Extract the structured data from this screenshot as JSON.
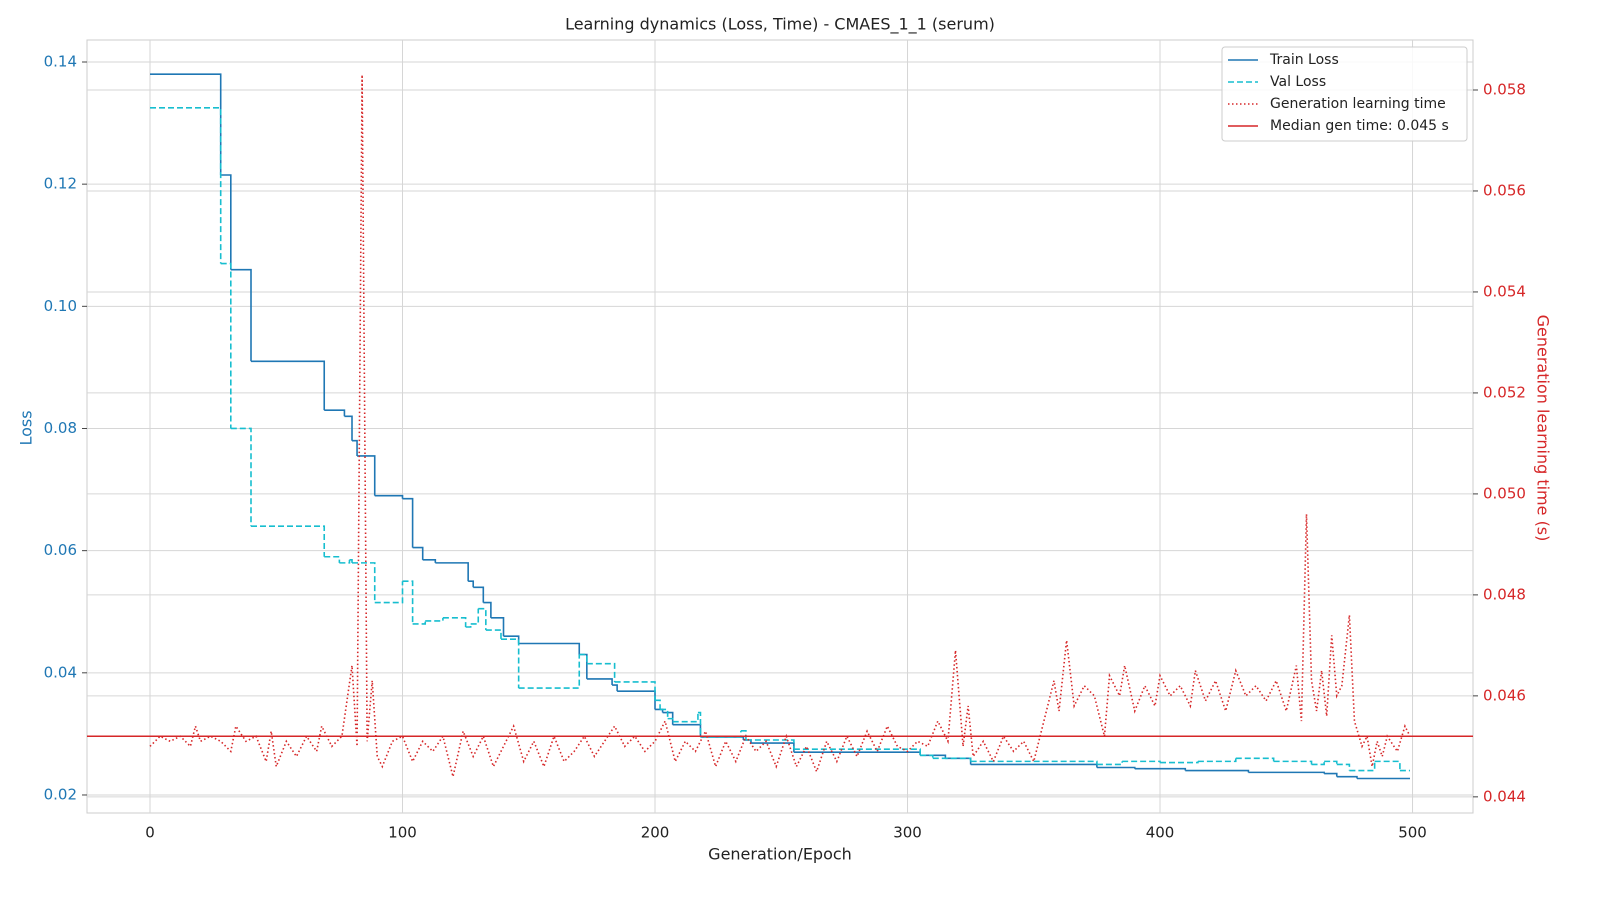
{
  "chart_data": {
    "type": "line",
    "title": "Learning dynamics (Loss, Time) - CMAES_1_1 (serum)",
    "xlabel": "Generation/Epoch",
    "ylabel": "Loss",
    "y2label": "Generation learning time (s)",
    "xlim": [
      -24.95,
      523.95
    ],
    "xticks": [
      0,
      100,
      200,
      300,
      400,
      500
    ],
    "ylim": [
      0.01705,
      0.1436
    ],
    "yticks": [
      0.02,
      0.04,
      0.06,
      0.08,
      {
        "value": 0.1,
        "label": "0.10"
      },
      0.12,
      0.14
    ],
    "y2lim": [
      0.04368,
      0.05899
    ],
    "y2ticks": [
      0.044,
      0.046,
      0.048,
      {
        "value": 0.05,
        "label": "0.050"
      },
      0.052,
      0.054,
      0.056,
      0.058
    ],
    "grid": true,
    "legend": "upper right",
    "ycolor": "#1f77b4",
    "y2color": "#d62728",
    "series": [
      {
        "name": "Train Loss",
        "color": "#1f77b4",
        "dash": "solid",
        "step": "post",
        "x": [
          0,
          28,
          32,
          40,
          69,
          77,
          80,
          82,
          89,
          100,
          104,
          108,
          113,
          126,
          128,
          132,
          135,
          140,
          146,
          170,
          173,
          183,
          185,
          200,
          203,
          207,
          218,
          235,
          238,
          255,
          305,
          315,
          325,
          375,
          390,
          410,
          435,
          465,
          470,
          478,
          499
        ],
        "values": [
          0.138,
          0.1215,
          0.106,
          0.091,
          0.083,
          0.082,
          0.078,
          0.0755,
          0.069,
          0.0685,
          0.0605,
          0.0585,
          0.058,
          0.055,
          0.054,
          0.0515,
          0.049,
          0.046,
          0.0448,
          0.043,
          0.039,
          0.038,
          0.037,
          0.034,
          0.0335,
          0.0315,
          0.0295,
          0.029,
          0.0285,
          0.027,
          0.0265,
          0.026,
          0.025,
          0.0245,
          0.0243,
          0.024,
          0.0237,
          0.0235,
          0.023,
          0.0227,
          0.0227
        ]
      },
      {
        "name": "Val Loss",
        "color": "#17becf",
        "dash": "dashed",
        "step": "post",
        "x": [
          0,
          28,
          32,
          40,
          69,
          75,
          79,
          80,
          89,
          100,
          104,
          109,
          116,
          125,
          127,
          130,
          133,
          139,
          146,
          170,
          173,
          184,
          200,
          202,
          205,
          207,
          217,
          218,
          234,
          236,
          255,
          305,
          310,
          325,
          375,
          385,
          400,
          415,
          430,
          445,
          460,
          465,
          470,
          475,
          485,
          495,
          499
        ],
        "values": [
          0.1325,
          0.107,
          0.08,
          0.064,
          0.059,
          0.058,
          0.0585,
          0.058,
          0.0515,
          0.055,
          0.048,
          0.0485,
          0.049,
          0.0475,
          0.048,
          0.0505,
          0.047,
          0.0455,
          0.0375,
          0.043,
          0.0415,
          0.0385,
          0.0355,
          0.034,
          0.0325,
          0.032,
          0.0335,
          0.0295,
          0.0305,
          0.029,
          0.0275,
          0.0265,
          0.026,
          0.0255,
          0.025,
          0.0255,
          0.0253,
          0.0255,
          0.026,
          0.0255,
          0.025,
          0.0255,
          0.025,
          0.024,
          0.0255,
          0.024,
          0.024
        ]
      },
      {
        "name": "Generation learning time",
        "color": "#d62728",
        "dash": "dotted",
        "axis": "y2",
        "x": [
          0,
          4,
          8,
          12,
          16,
          18,
          20,
          24,
          28,
          32,
          34,
          38,
          42,
          46,
          48,
          50,
          54,
          58,
          62,
          66,
          68,
          72,
          76,
          80,
          82,
          84,
          86,
          88,
          90,
          92,
          96,
          100,
          104,
          108,
          112,
          116,
          120,
          124,
          128,
          132,
          136,
          140,
          144,
          148,
          152,
          156,
          160,
          164,
          168,
          172,
          176,
          180,
          184,
          188,
          192,
          196,
          200,
          204,
          208,
          212,
          216,
          220,
          224,
          228,
          232,
          236,
          240,
          244,
          248,
          252,
          256,
          260,
          264,
          268,
          272,
          276,
          280,
          284,
          288,
          292,
          296,
          300,
          304,
          308,
          312,
          316,
          319,
          322,
          324,
          326,
          330,
          334,
          338,
          342,
          346,
          350,
          354,
          358,
          360,
          363,
          366,
          370,
          374,
          378,
          380,
          384,
          386,
          390,
          394,
          398,
          400,
          404,
          408,
          412,
          414,
          418,
          422,
          426,
          430,
          434,
          438,
          442,
          446,
          450,
          454,
          456,
          458,
          460,
          462,
          464,
          466,
          468,
          470,
          472,
          475,
          477,
          480,
          482,
          484,
          486,
          488,
          490,
          494,
          497,
          499
        ],
        "values": [
          0.045,
          0.0452,
          0.0451,
          0.0452,
          0.045,
          0.0454,
          0.0451,
          0.0452,
          0.0451,
          0.0449,
          0.0454,
          0.0451,
          0.0452,
          0.0447,
          0.0453,
          0.0446,
          0.0451,
          0.0448,
          0.0452,
          0.0449,
          0.0454,
          0.045,
          0.0452,
          0.0466,
          0.045,
          0.0583,
          0.0451,
          0.0463,
          0.0448,
          0.0446,
          0.0451,
          0.0452,
          0.0447,
          0.0451,
          0.0449,
          0.0452,
          0.0444,
          0.0453,
          0.0448,
          0.0452,
          0.0446,
          0.045,
          0.0454,
          0.0447,
          0.0451,
          0.0446,
          0.0452,
          0.0447,
          0.0449,
          0.0452,
          0.0448,
          0.0451,
          0.0454,
          0.045,
          0.0452,
          0.0449,
          0.0451,
          0.0455,
          0.0447,
          0.0451,
          0.0449,
          0.0453,
          0.0446,
          0.0451,
          0.0447,
          0.0452,
          0.0449,
          0.0451,
          0.0446,
          0.0452,
          0.0446,
          0.045,
          0.0445,
          0.0451,
          0.0447,
          0.0452,
          0.0448,
          0.0453,
          0.0449,
          0.0454,
          0.045,
          0.0449,
          0.0451,
          0.045,
          0.0455,
          0.0451,
          0.0469,
          0.045,
          0.0458,
          0.0448,
          0.0451,
          0.0447,
          0.0452,
          0.0449,
          0.0451,
          0.0447,
          0.0455,
          0.0463,
          0.0457,
          0.0471,
          0.0458,
          0.0462,
          0.046,
          0.0452,
          0.0464,
          0.046,
          0.0466,
          0.0457,
          0.0462,
          0.0458,
          0.0464,
          0.046,
          0.0462,
          0.0458,
          0.0465,
          0.0459,
          0.0463,
          0.0457,
          0.0465,
          0.046,
          0.0462,
          0.0459,
          0.0463,
          0.0457,
          0.0466,
          0.0455,
          0.0496,
          0.0463,
          0.0457,
          0.0465,
          0.0456,
          0.0472,
          0.046,
          0.0462,
          0.0476,
          0.0455,
          0.045,
          0.0452,
          0.0446,
          0.0451,
          0.0448,
          0.0452,
          0.0449,
          0.0454,
          0.0452
        ]
      },
      {
        "name": "Median gen time: 0.045 s",
        "color": "#d62728",
        "dash": "solid",
        "axis": "y2",
        "hline": 0.0452
      }
    ]
  }
}
